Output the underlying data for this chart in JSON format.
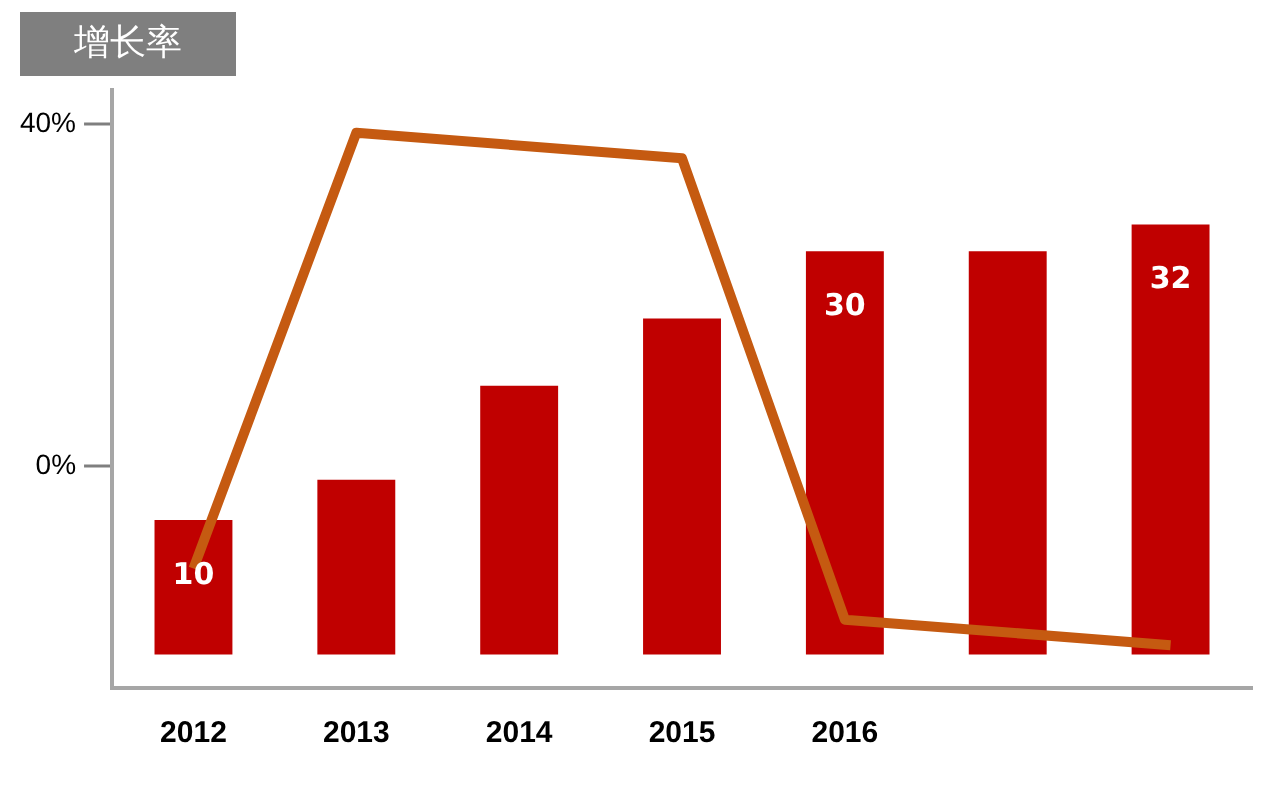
{
  "chart_data": {
    "type": "bar",
    "ylabel": "增长率",
    "categories": [
      "2012",
      "2013",
      "2014",
      "2015",
      "2016",
      null,
      null
    ],
    "series": [
      {
        "axis": "y2",
        "color": "#c00000",
        "values": [
          10,
          13,
          20,
          25,
          30,
          30,
          32
        ],
        "value_labels": [
          "10",
          null,
          null,
          null,
          "30",
          null,
          "32"
        ]
      },
      {
        "type": "line",
        "color": "#c55a11",
        "values": [
          -12,
          39,
          null,
          36,
          -18,
          null,
          -21
        ]
      }
    ],
    "ylim": [
      -26,
      44
    ],
    "yticks": [
      {
        "value": 0,
        "label": "0%"
      },
      {
        "value": 40,
        "label": "40%"
      }
    ],
    "y2lim": [
      -2.5,
      42
    ],
    "grid": false,
    "legend": false,
    "marker": "none"
  }
}
